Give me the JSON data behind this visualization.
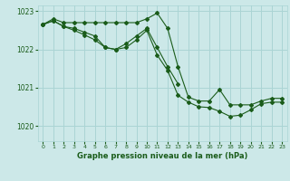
{
  "title": "Graphe pression niveau de la mer (hPa)",
  "bg_color": "#cce8e8",
  "grid_color": "#aad4d4",
  "line_color": "#1a5c1a",
  "xlim": [
    -0.5,
    23.5
  ],
  "ylim": [
    1019.6,
    1023.15
  ],
  "yticks": [
    1020,
    1021,
    1022,
    1023
  ],
  "xticks": [
    0,
    1,
    2,
    3,
    4,
    5,
    6,
    7,
    8,
    9,
    10,
    11,
    12,
    13,
    14,
    15,
    16,
    17,
    18,
    19,
    20,
    21,
    22,
    23
  ],
  "line1_x": [
    0,
    1,
    2,
    3,
    4,
    5,
    6,
    7,
    8,
    9,
    10,
    11,
    12,
    13,
    14,
    15,
    16,
    17,
    18,
    19,
    20,
    21,
    22,
    23
  ],
  "line1_y": [
    1022.65,
    1022.8,
    1022.7,
    1022.7,
    1022.7,
    1022.7,
    1022.7,
    1022.7,
    1022.7,
    1022.7,
    1022.8,
    1022.95,
    1022.55,
    1021.55,
    1020.75,
    1020.65,
    1020.65,
    1020.95,
    1020.55,
    1020.55,
    1020.55,
    1020.65,
    1020.72,
    1020.72
  ],
  "line2_x": [
    0,
    1,
    2,
    3,
    4,
    5,
    6,
    7,
    8,
    9,
    10,
    11,
    12,
    13
  ],
  "line2_y": [
    1022.65,
    1022.75,
    1022.6,
    1022.55,
    1022.45,
    1022.35,
    1022.05,
    1022.0,
    1022.15,
    1022.35,
    1022.55,
    1022.05,
    1021.55,
    1021.1
  ],
  "line3_x": [
    0,
    1,
    2,
    3,
    4,
    5,
    6,
    7,
    8,
    9,
    10,
    11,
    12,
    13,
    14,
    15,
    16,
    17,
    18,
    19,
    20,
    21,
    22,
    23
  ],
  "line3_y": [
    1022.65,
    1022.75,
    1022.6,
    1022.5,
    1022.38,
    1022.25,
    1022.05,
    1022.0,
    1022.05,
    1022.25,
    1022.5,
    1021.85,
    1021.45,
    1020.8,
    1020.62,
    1020.5,
    1020.48,
    1020.38,
    1020.25,
    1020.28,
    1020.42,
    1020.58,
    1020.62,
    1020.62
  ]
}
